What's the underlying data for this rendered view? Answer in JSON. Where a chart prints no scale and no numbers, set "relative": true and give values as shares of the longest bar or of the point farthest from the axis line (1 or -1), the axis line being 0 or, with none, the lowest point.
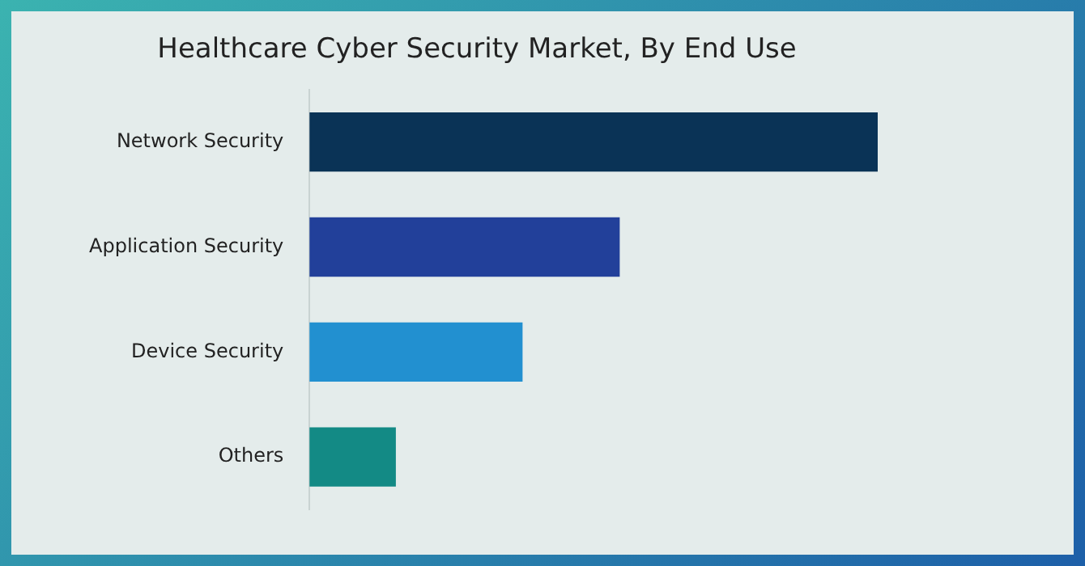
{
  "chart_data": {
    "type": "bar",
    "title": "Healthcare Cyber Security Market, By End Use",
    "orientation": "horizontal",
    "relative": true,
    "categories": [
      "Network Security",
      "Application Security",
      "Device Security",
      "Others"
    ],
    "values": [
      1,
      0.545,
      0.374,
      0.151
    ],
    "colors": [
      "#0a3356",
      "#22409a",
      "#2290d0",
      "#138a85"
    ],
    "legend": false
  }
}
